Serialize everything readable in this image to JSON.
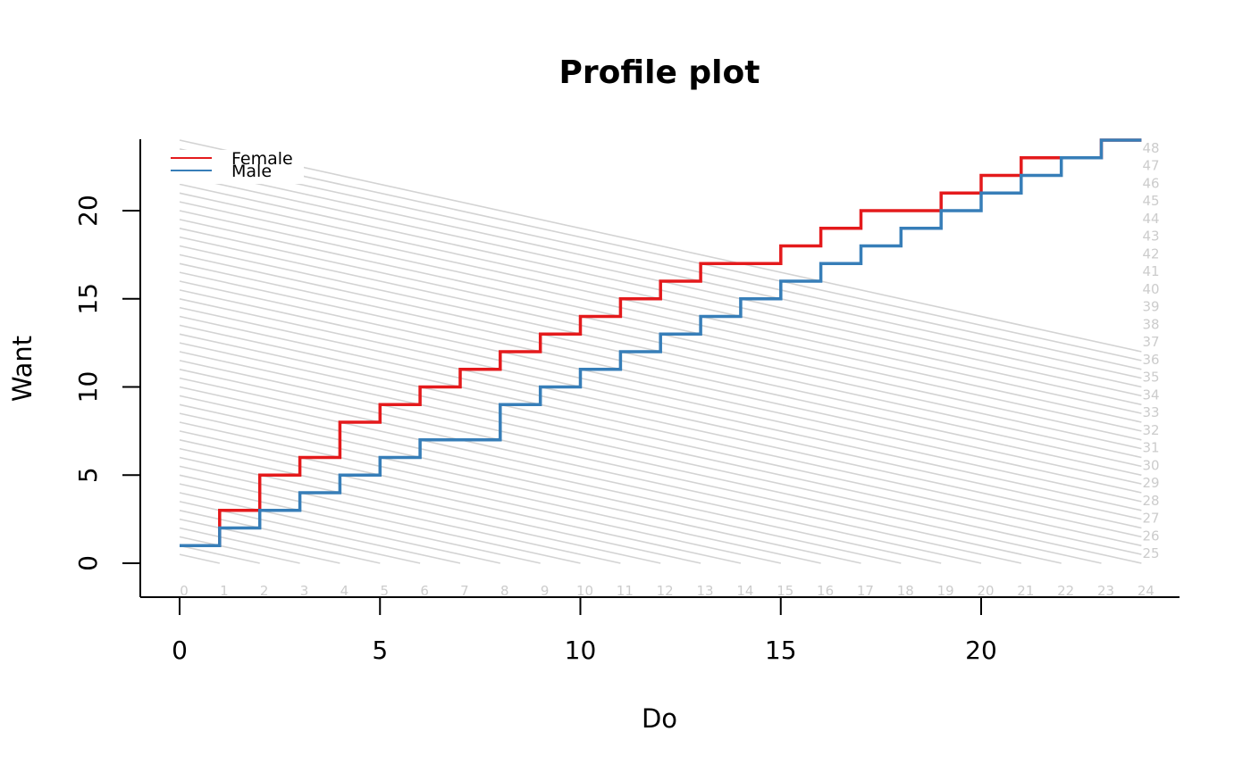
{
  "chart_data": {
    "type": "line",
    "step": true,
    "title": "Profile plot",
    "xlabel": "Do",
    "ylabel": "Want",
    "xlim": [
      0,
      24
    ],
    "ylim": [
      0,
      24
    ],
    "x_ticks": [
      "0",
      "5",
      "10",
      "15",
      "20"
    ],
    "y_ticks": [
      "0",
      "5",
      "10",
      "15",
      "20"
    ],
    "diagonal_labels_bottom": [
      "0",
      "1",
      "2",
      "3",
      "4",
      "5",
      "6",
      "7",
      "8",
      "9",
      "10",
      "11",
      "12",
      "13",
      "14",
      "15",
      "16",
      "17",
      "18",
      "19",
      "20",
      "21",
      "22",
      "23",
      "24"
    ],
    "diagonal_labels_right": [
      "25",
      "26",
      "27",
      "28",
      "29",
      "30",
      "31",
      "32",
      "33",
      "34",
      "35",
      "36",
      "37",
      "38",
      "39",
      "40",
      "41",
      "42",
      "43",
      "44",
      "45",
      "46",
      "47",
      "48"
    ],
    "diagonal_line_color": "#d3d3d3",
    "legend_position": "top-left",
    "series": [
      {
        "name": "Female",
        "color": "#e41a1c",
        "x": [
          0,
          1,
          2,
          3,
          4,
          5,
          6,
          7,
          8,
          9,
          10,
          11,
          12,
          13,
          14,
          15,
          16,
          17,
          18,
          19,
          20,
          21,
          22,
          23,
          24
        ],
        "y": [
          1,
          3,
          5,
          6,
          8,
          9,
          10,
          11,
          12,
          13,
          14,
          15,
          16,
          17,
          17,
          18,
          19,
          20,
          20,
          21,
          22,
          23,
          23,
          24,
          24
        ]
      },
      {
        "name": "Male",
        "color": "#377eb8",
        "x": [
          0,
          1,
          2,
          3,
          4,
          5,
          6,
          7,
          8,
          9,
          10,
          11,
          12,
          13,
          14,
          15,
          16,
          17,
          18,
          19,
          20,
          21,
          22,
          23,
          24
        ],
        "y": [
          1,
          2,
          3,
          4,
          5,
          6,
          7,
          7,
          9,
          10,
          11,
          12,
          13,
          14,
          15,
          16,
          17,
          18,
          19,
          20,
          21,
          22,
          23,
          24,
          24
        ]
      }
    ]
  }
}
